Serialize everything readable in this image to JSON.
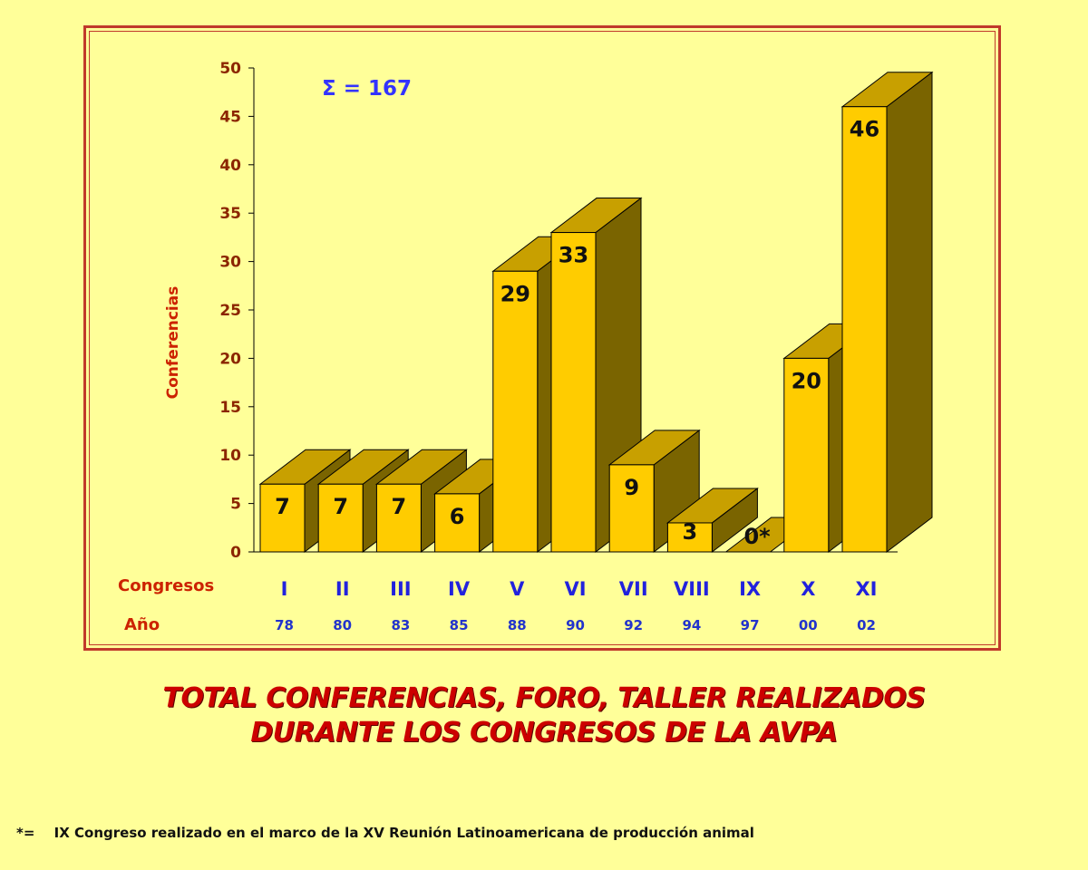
{
  "chart_data": {
    "type": "bar",
    "style": "3d",
    "ylabel": "Conferencias",
    "ylim": [
      0,
      50
    ],
    "yticks": [
      0,
      5,
      10,
      15,
      20,
      25,
      30,
      35,
      40,
      45,
      50
    ],
    "categories": [
      "I",
      "II",
      "III",
      "IV",
      "V",
      "VI",
      "VII",
      "VIII",
      "IX",
      "X",
      "XI"
    ],
    "years": [
      "78",
      "80",
      "83",
      "85",
      "88",
      "90",
      "92",
      "94",
      "97",
      "00",
      "02"
    ],
    "values": [
      7,
      7,
      7,
      6,
      29,
      33,
      9,
      3,
      0,
      20,
      46
    ],
    "value_labels": [
      "7",
      "7",
      "7",
      "6",
      "29",
      "33",
      "9",
      "3",
      "0*",
      "20",
      "46"
    ],
    "row_labels": {
      "congresos": "Congresos",
      "year": "Año"
    },
    "annotation": "Σ = 167",
    "colors": {
      "bar_front": "#ffcc00",
      "bar_top": "#c8a000",
      "bar_side": "#7a6400",
      "tick_label": "#8b2500",
      "category_label": "#2222dd"
    }
  },
  "title": {
    "line1": "TOTAL CONFERENCIAS, FORO, TALLER REALIZADOS",
    "line2": "DURANTE LOS CONGRESOS DE LA AVPA"
  },
  "footnote": {
    "mark": "*=",
    "text": "IX Congreso realizado en el marco de la XV Reunión Latinoamericana de producción animal"
  }
}
